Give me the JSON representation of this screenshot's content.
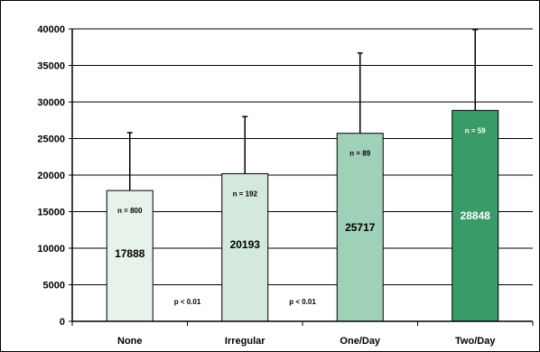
{
  "chart_data": {
    "type": "bar",
    "title": "",
    "xlabel": "",
    "ylabel": "",
    "categories": [
      "None",
      "Irregular",
      "One/Day",
      "Two/Day"
    ],
    "values": [
      17888,
      20193,
      25717,
      28848
    ],
    "value_labels": [
      "17888",
      "20193",
      "25717",
      "28848"
    ],
    "error_upper": [
      25800,
      28000,
      36700,
      39900
    ],
    "n_labels": [
      "n = 800",
      "n = 192",
      "n = 89",
      "n = 59"
    ],
    "bar_colors": [
      "#e6f2ea",
      "#d2e9dc",
      "#9fd1b8",
      "#389b68"
    ],
    "value_label_colors": [
      "#000000",
      "#000000",
      "#000000",
      "#ffffff"
    ],
    "n_label_colors": [
      "#000000",
      "#000000",
      "#000000",
      "#ffffff"
    ],
    "annotations": [
      {
        "text": "p < 0.01",
        "between": [
          "None",
          "Irregular"
        ]
      },
      {
        "text": "p < 0.01",
        "between": [
          "Irregular",
          "One/Day"
        ]
      }
    ],
    "ylim": [
      0,
      40000
    ],
    "yticks": [
      0,
      5000,
      10000,
      15000,
      20000,
      25000,
      30000,
      35000,
      40000
    ],
    "grid": true
  }
}
